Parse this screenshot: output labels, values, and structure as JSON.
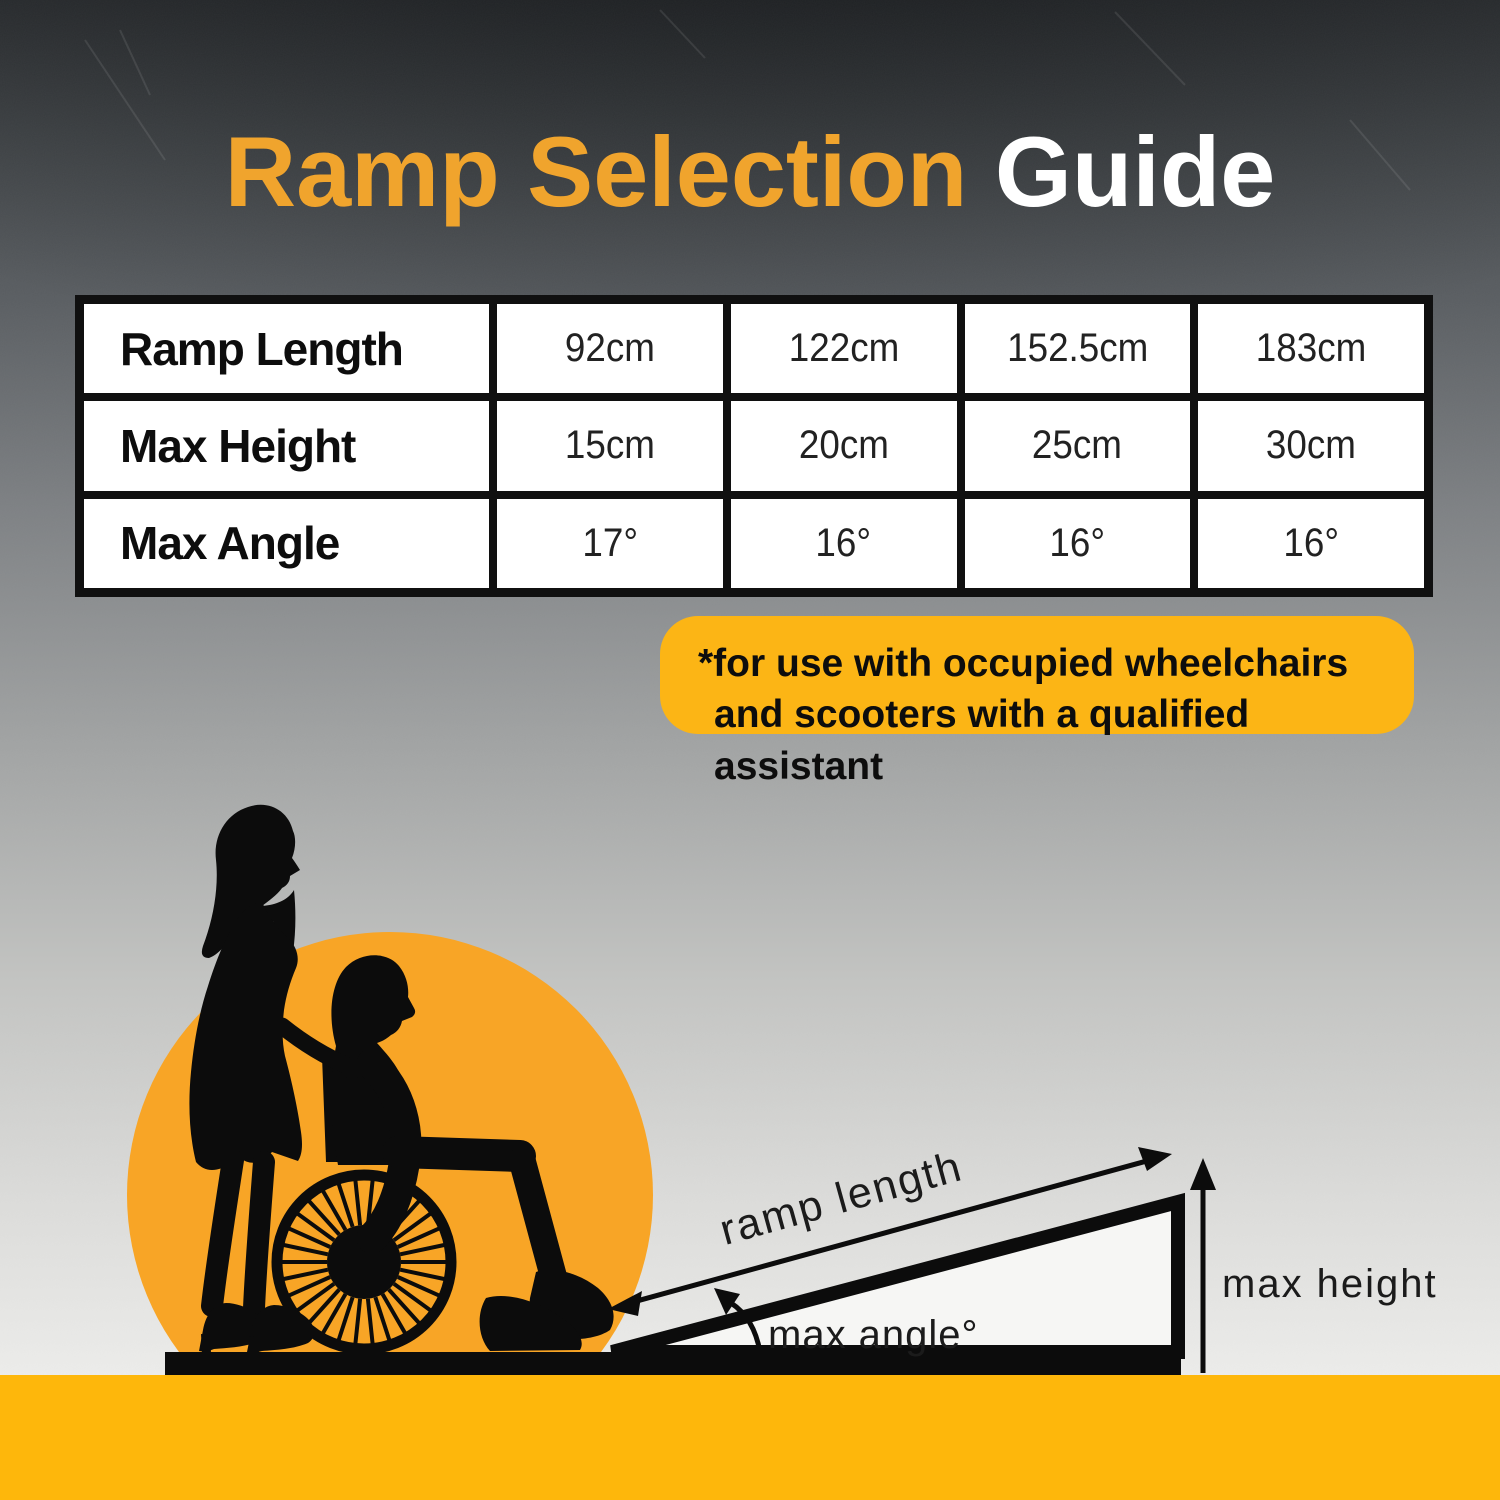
{
  "title": {
    "highlight": "Ramp Selection",
    "rest": "Guide"
  },
  "table": {
    "rows": [
      {
        "label": "Ramp Length",
        "values": [
          "92cm",
          "122cm",
          "152.5cm",
          "183cm"
        ]
      },
      {
        "label": "Max Height",
        "values": [
          "15cm",
          "20cm",
          "25cm",
          "30cm"
        ]
      },
      {
        "label": "Max Angle",
        "values": [
          "17°",
          "16°",
          "16°",
          "16°"
        ]
      }
    ]
  },
  "chart_data": {
    "type": "table",
    "title": "Ramp Selection Guide",
    "columns": [
      "Ramp Length",
      "Max Height",
      "Max Angle"
    ],
    "records": [
      {
        "ramp_length": "92cm",
        "max_height": "15cm",
        "max_angle": "17°"
      },
      {
        "ramp_length": "122cm",
        "max_height": "20cm",
        "max_angle": "16°"
      },
      {
        "ramp_length": "152.5cm",
        "max_height": "25cm",
        "max_angle": "16°"
      },
      {
        "ramp_length": "183cm",
        "max_height": "30cm",
        "max_angle": "16°"
      }
    ]
  },
  "note": {
    "line1": "*for use with occupied wheelchairs",
    "line2": "and scooters with a qualified assistant"
  },
  "diagram": {
    "ramp_length_label": "ramp length",
    "max_angle_label": "max angle°",
    "max_height_label": "max height"
  },
  "colors": {
    "title_orange": "#F0A42D",
    "note_orange": "#FCB515",
    "circle_orange": "#F8A526",
    "bottom_bar_orange": "#FEB70B",
    "silhouette_black": "#0c0c0c",
    "table_border": "#101010",
    "background_top": "#2e3134",
    "background_bottom": "#f2f2f0"
  }
}
